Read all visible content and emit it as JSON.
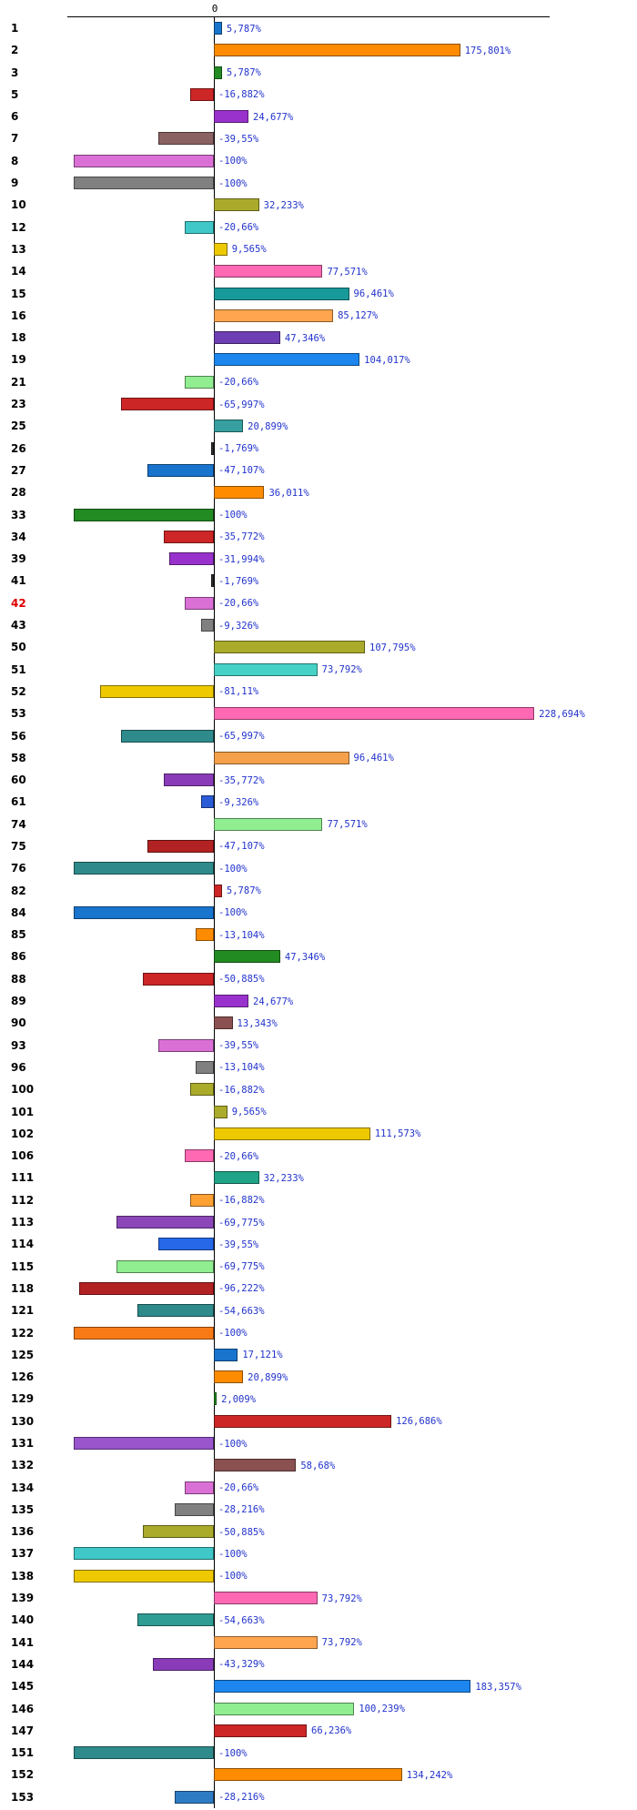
{
  "chart_data": {
    "type": "bar",
    "orientation": "horizontal",
    "title": "",
    "xlabel": "",
    "ylabel": "",
    "unit": "%",
    "zero_label": "0",
    "xlim": [
      -104,
      240
    ],
    "grid": false,
    "legend": false,
    "value_label_color": "#2233CC",
    "highlight_row_label_color": "#DD0000",
    "rows": [
      {
        "label": "1",
        "value": 5.787,
        "display": "5,787%",
        "color": "#1874CD"
      },
      {
        "label": "2",
        "value": 175.801,
        "display": "175,801%",
        "color": "#FF8C00"
      },
      {
        "label": "3",
        "value": 5.787,
        "display": "5,787%",
        "color": "#228B22"
      },
      {
        "label": "5",
        "value": -16.882,
        "display": "-16,882%",
        "color": "#CD2626"
      },
      {
        "label": "6",
        "value": 24.677,
        "display": "24,677%",
        "color": "#9932CC"
      },
      {
        "label": "7",
        "value": -39.55,
        "display": "-39,55%",
        "color": "#8B6262"
      },
      {
        "label": "8",
        "value": -100,
        "display": "-100%",
        "color": "#DA70D6"
      },
      {
        "label": "9",
        "value": -100,
        "display": "-100%",
        "color": "#808080"
      },
      {
        "label": "10",
        "value": 32.233,
        "display": "32,233%",
        "color": "#ABAB2B"
      },
      {
        "label": "12",
        "value": -20.66,
        "display": "-20,66%",
        "color": "#40C8C8"
      },
      {
        "label": "13",
        "value": 9.565,
        "display": "9,565%",
        "color": "#EEC900"
      },
      {
        "label": "14",
        "value": 77.571,
        "display": "77,571%",
        "color": "#FF69B4"
      },
      {
        "label": "15",
        "value": 96.461,
        "display": "96,461%",
        "color": "#189A9A"
      },
      {
        "label": "16",
        "value": 85.127,
        "display": "85,127%",
        "color": "#FFA54F"
      },
      {
        "label": "18",
        "value": 47.346,
        "display": "47,346%",
        "color": "#6E3FB4"
      },
      {
        "label": "19",
        "value": 104.017,
        "display": "104,017%",
        "color": "#1C86EE"
      },
      {
        "label": "21",
        "value": -20.66,
        "display": "-20,66%",
        "color": "#90EE90"
      },
      {
        "label": "23",
        "value": -65.997,
        "display": "-65,997%",
        "color": "#CD2626"
      },
      {
        "label": "25",
        "value": 20.899,
        "display": "20,899%",
        "color": "#379F9F"
      },
      {
        "label": "26",
        "value": -1.769,
        "display": "-1,769%",
        "color": "#303030"
      },
      {
        "label": "27",
        "value": -47.107,
        "display": "-47,107%",
        "color": "#1874CD"
      },
      {
        "label": "28",
        "value": 36.011,
        "display": "36,011%",
        "color": "#FF8C00"
      },
      {
        "label": "33",
        "value": -100,
        "display": "-100%",
        "color": "#228B22"
      },
      {
        "label": "34",
        "value": -35.772,
        "display": "-35,772%",
        "color": "#CD2626"
      },
      {
        "label": "39",
        "value": -31.994,
        "display": "-31,994%",
        "color": "#9932CC"
      },
      {
        "label": "41",
        "value": -1.769,
        "display": "-1,769%",
        "color": "#303030"
      },
      {
        "label": "42",
        "value": -20.66,
        "display": "-20,66%",
        "color": "#DA70D6",
        "label_color": "#DD0000"
      },
      {
        "label": "43",
        "value": -9.326,
        "display": "-9,326%",
        "color": "#808080"
      },
      {
        "label": "50",
        "value": 107.795,
        "display": "107,795%",
        "color": "#ABAB2B"
      },
      {
        "label": "51",
        "value": 73.792,
        "display": "73,792%",
        "color": "#45D1C5"
      },
      {
        "label": "52",
        "value": -81.11,
        "display": "-81,11%",
        "color": "#EEC900"
      },
      {
        "label": "53",
        "value": 228.694,
        "display": "228,694%",
        "color": "#FF69B4"
      },
      {
        "label": "56",
        "value": -65.997,
        "display": "-65,997%",
        "color": "#2F8B8B"
      },
      {
        "label": "58",
        "value": 96.461,
        "display": "96,461%",
        "color": "#F5A04A"
      },
      {
        "label": "60",
        "value": -35.772,
        "display": "-35,772%",
        "color": "#8A3CB8"
      },
      {
        "label": "61",
        "value": -9.326,
        "display": "-9,326%",
        "color": "#2B5CD8"
      },
      {
        "label": "74",
        "value": 77.571,
        "display": "77,571%",
        "color": "#90EE90"
      },
      {
        "label": "75",
        "value": -47.107,
        "display": "-47,107%",
        "color": "#B22222"
      },
      {
        "label": "76",
        "value": -100,
        "display": "-100%",
        "color": "#2F8B8B"
      },
      {
        "label": "82",
        "value": 5.787,
        "display": "5,787%",
        "color": "#CD2626"
      },
      {
        "label": "84",
        "value": -100,
        "display": "-100%",
        "color": "#1874CD"
      },
      {
        "label": "85",
        "value": -13.104,
        "display": "-13,104%",
        "color": "#FF8C00"
      },
      {
        "label": "86",
        "value": 47.346,
        "display": "47,346%",
        "color": "#228B22"
      },
      {
        "label": "88",
        "value": -50.885,
        "display": "-50,885%",
        "color": "#CD2626"
      },
      {
        "label": "89",
        "value": 24.677,
        "display": "24,677%",
        "color": "#9932CC"
      },
      {
        "label": "90",
        "value": 13.343,
        "display": "13,343%",
        "color": "#8B5050"
      },
      {
        "label": "93",
        "value": -39.55,
        "display": "-39,55%",
        "color": "#DA70D6"
      },
      {
        "label": "96",
        "value": -13.104,
        "display": "-13,104%",
        "color": "#808080"
      },
      {
        "label": "100",
        "value": -16.882,
        "display": "-16,882%",
        "color": "#ABAB2B"
      },
      {
        "label": "101",
        "value": 9.565,
        "display": "9,565%",
        "color": "#ABAB2B"
      },
      {
        "label": "102",
        "value": 111.573,
        "display": "111,573%",
        "color": "#EEC900"
      },
      {
        "label": "106",
        "value": -20.66,
        "display": "-20,66%",
        "color": "#FF69B4"
      },
      {
        "label": "111",
        "value": 32.233,
        "display": "32,233%",
        "color": "#20A387"
      },
      {
        "label": "112",
        "value": -16.882,
        "display": "-16,882%",
        "color": "#FFA033"
      },
      {
        "label": "113",
        "value": -69.775,
        "display": "-69,775%",
        "color": "#8B47B8"
      },
      {
        "label": "114",
        "value": -39.55,
        "display": "-39,55%",
        "color": "#2668E8"
      },
      {
        "label": "115",
        "value": -69.775,
        "display": "-69,775%",
        "color": "#90EE90"
      },
      {
        "label": "118",
        "value": -96.222,
        "display": "-96,222%",
        "color": "#B22222"
      },
      {
        "label": "121",
        "value": -54.663,
        "display": "-54,663%",
        "color": "#2F8B8B"
      },
      {
        "label": "122",
        "value": -100,
        "display": "-100%",
        "color": "#F87A17"
      },
      {
        "label": "125",
        "value": 17.121,
        "display": "17,121%",
        "color": "#1874CD"
      },
      {
        "label": "126",
        "value": 20.899,
        "display": "20,899%",
        "color": "#FF8C00"
      },
      {
        "label": "129",
        "value": 2.009,
        "display": "2,009%",
        "color": "#228B22"
      },
      {
        "label": "130",
        "value": 126.686,
        "display": "126,686%",
        "color": "#CD2626"
      },
      {
        "label": "131",
        "value": -100,
        "display": "-100%",
        "color": "#9955CC"
      },
      {
        "label": "132",
        "value": 58.68,
        "display": "58,68%",
        "color": "#8B5050"
      },
      {
        "label": "134",
        "value": -20.66,
        "display": "-20,66%",
        "color": "#DA70D6"
      },
      {
        "label": "135",
        "value": -28.216,
        "display": "-28,216%",
        "color": "#808080"
      },
      {
        "label": "136",
        "value": -50.885,
        "display": "-50,885%",
        "color": "#ABAB2B"
      },
      {
        "label": "137",
        "value": -100,
        "display": "-100%",
        "color": "#40C8C8"
      },
      {
        "label": "138",
        "value": -100,
        "display": "-100%",
        "color": "#EEC900"
      },
      {
        "label": "139",
        "value": 73.792,
        "display": "73,792%",
        "color": "#FF69B4"
      },
      {
        "label": "140",
        "value": -54.663,
        "display": "-54,663%",
        "color": "#2F9D93"
      },
      {
        "label": "141",
        "value": 73.792,
        "display": "73,792%",
        "color": "#FFA54F"
      },
      {
        "label": "144",
        "value": -43.329,
        "display": "-43,329%",
        "color": "#8A3CB8"
      },
      {
        "label": "145",
        "value": 183.357,
        "display": "183,357%",
        "color": "#1C86EE"
      },
      {
        "label": "146",
        "value": 100.239,
        "display": "100,239%",
        "color": "#90EE90"
      },
      {
        "label": "147",
        "value": 66.236,
        "display": "66,236%",
        "color": "#CD2626"
      },
      {
        "label": "151",
        "value": -100,
        "display": "-100%",
        "color": "#2F8B8B"
      },
      {
        "label": "152",
        "value": 134.242,
        "display": "134,242%",
        "color": "#FF8C00"
      },
      {
        "label": "153",
        "value": -28.216,
        "display": "-28,216%",
        "color": "#2E7BC4"
      }
    ]
  }
}
